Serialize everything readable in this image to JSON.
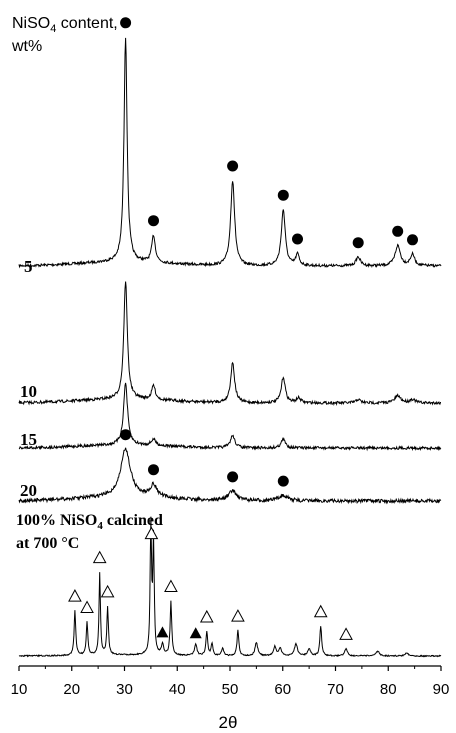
{
  "chart_data": {
    "type": "line",
    "xlabel": "2θ",
    "xlim": [
      10,
      90
    ],
    "x_ticks": [
      "10",
      "20",
      "30",
      "40",
      "50",
      "60",
      "70",
      "80",
      "90"
    ],
    "legend_title": [
      "NiSO",
      "4",
      " content,",
      "wt%"
    ],
    "series": [
      {
        "name": "5",
        "peaks": [
          {
            "x": 30.2,
            "h": 1.0,
            "w": 0.35
          },
          {
            "x": 35.5,
            "h": 0.12,
            "w": 0.4
          },
          {
            "x": 50.5,
            "h": 0.38,
            "w": 0.45
          },
          {
            "x": 60.1,
            "h": 0.25,
            "w": 0.45
          },
          {
            "x": 62.8,
            "h": 0.05,
            "w": 0.4
          },
          {
            "x": 74.3,
            "h": 0.04,
            "w": 0.5
          },
          {
            "x": 81.8,
            "h": 0.09,
            "w": 0.6
          },
          {
            "x": 84.6,
            "h": 0.05,
            "w": 0.5
          }
        ],
        "markers": [
          30.2,
          35.5,
          50.5,
          60.1,
          62.8,
          74.3,
          81.8,
          84.6
        ]
      },
      {
        "name": "10",
        "peaks": [
          {
            "x": 30.2,
            "h": 1.0,
            "w": 0.4
          },
          {
            "x": 35.5,
            "h": 0.12,
            "w": 0.4
          },
          {
            "x": 50.5,
            "h": 0.34,
            "w": 0.45
          },
          {
            "x": 60.1,
            "h": 0.22,
            "w": 0.45
          },
          {
            "x": 63.0,
            "h": 0.04,
            "w": 0.5
          },
          {
            "x": 74.3,
            "h": 0.03,
            "w": 0.5
          },
          {
            "x": 81.8,
            "h": 0.06,
            "w": 0.7
          },
          {
            "x": 84.6,
            "h": 0.03,
            "w": 0.6
          }
        ],
        "markers": []
      },
      {
        "name": "15",
        "peaks": [
          {
            "x": 30.2,
            "h": 1.0,
            "w": 0.45
          },
          {
            "x": 35.5,
            "h": 0.1,
            "w": 0.5
          },
          {
            "x": 50.5,
            "h": 0.2,
            "w": 0.5
          },
          {
            "x": 60.1,
            "h": 0.14,
            "w": 0.5
          }
        ],
        "markers": []
      },
      {
        "name": "20",
        "peaks": [
          {
            "x": 30.2,
            "h": 1.0,
            "w": 1.1
          },
          {
            "x": 35.5,
            "h": 0.25,
            "w": 0.8
          },
          {
            "x": 50.5,
            "h": 0.2,
            "w": 1.0
          },
          {
            "x": 60.1,
            "h": 0.12,
            "w": 1.0
          }
        ],
        "markers": [
          30.2,
          35.5,
          50.5,
          60.1
        ]
      },
      {
        "name": "100% NiSO4 calcined at 700 °C",
        "peaks": [
          {
            "x": 20.6,
            "h": 0.3,
            "w": 0.18
          },
          {
            "x": 22.9,
            "h": 0.22,
            "w": 0.18
          },
          {
            "x": 25.3,
            "h": 0.55,
            "w": 0.16
          },
          {
            "x": 26.8,
            "h": 0.32,
            "w": 0.18
          },
          {
            "x": 35.0,
            "h": 0.85,
            "w": 0.16
          },
          {
            "x": 35.5,
            "h": 0.75,
            "w": 0.16
          },
          {
            "x": 37.2,
            "h": 0.07,
            "w": 0.25
          },
          {
            "x": 38.8,
            "h": 0.36,
            "w": 0.18
          },
          {
            "x": 43.5,
            "h": 0.08,
            "w": 0.25
          },
          {
            "x": 45.6,
            "h": 0.16,
            "w": 0.2
          },
          {
            "x": 46.6,
            "h": 0.08,
            "w": 0.2
          },
          {
            "x": 48.6,
            "h": 0.05,
            "w": 0.25
          },
          {
            "x": 51.5,
            "h": 0.17,
            "w": 0.2
          },
          {
            "x": 55.0,
            "h": 0.09,
            "w": 0.3
          },
          {
            "x": 58.5,
            "h": 0.06,
            "w": 0.3
          },
          {
            "x": 59.5,
            "h": 0.05,
            "w": 0.3
          },
          {
            "x": 62.5,
            "h": 0.08,
            "w": 0.35
          },
          {
            "x": 65.0,
            "h": 0.05,
            "w": 0.3
          },
          {
            "x": 67.2,
            "h": 0.2,
            "w": 0.2
          },
          {
            "x": 72.0,
            "h": 0.05,
            "w": 0.3
          },
          {
            "x": 78.0,
            "h": 0.03,
            "w": 0.4
          },
          {
            "x": 83.5,
            "h": 0.02,
            "w": 0.4
          }
        ],
        "open_triangles": [
          20.6,
          22.9,
          25.3,
          26.8,
          35.1,
          38.8,
          45.6,
          51.5,
          67.2,
          72.0
        ],
        "filled_triangles": [
          37.2,
          43.5
        ]
      }
    ],
    "sample_labels": [
      "5",
      "10",
      "15",
      "20"
    ],
    "reference_label_lines": [
      "100% NiSO",
      "4",
      " calcined",
      "at 700 °C"
    ]
  }
}
